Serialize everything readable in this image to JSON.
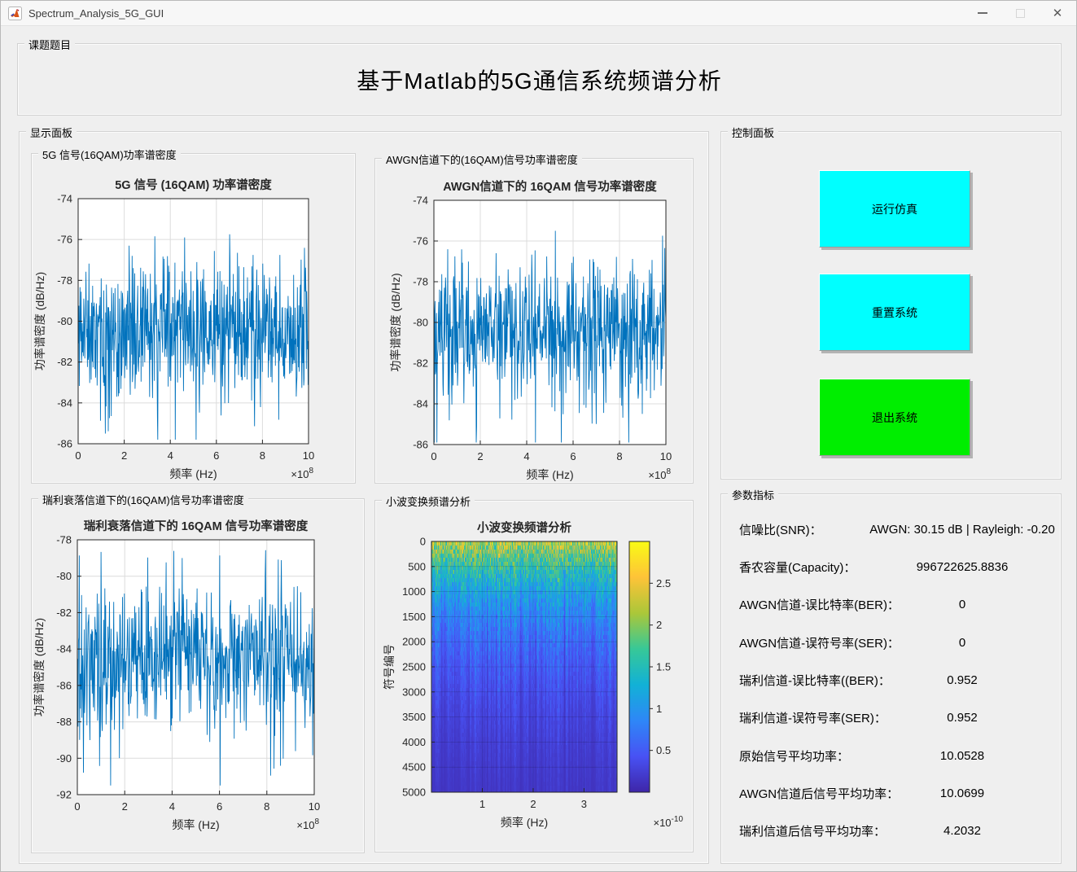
{
  "window": {
    "title": "Spectrum_Analysis_5G_GUI"
  },
  "header_panel": {
    "label": "课题题目",
    "title": "基于Matlab的5G通信系统频谱分析"
  },
  "display_panel": {
    "label": "显示面板"
  },
  "control_panel": {
    "label": "控制面板",
    "buttons": [
      {
        "label": "运行仿真",
        "color": "#00FFFF"
      },
      {
        "label": "重置系统",
        "color": "#00FFFF"
      },
      {
        "label": "退出系统",
        "color": "#00EE00"
      }
    ]
  },
  "param_panel": {
    "label": "参数指标",
    "rows": [
      {
        "label": "信噪比(SNR)：",
        "value": "AWGN: 30.15 dB | Rayleigh: -0.20"
      },
      {
        "label": "香农容量(Capacity)：",
        "value": "996722625.8836"
      },
      {
        "label": "AWGN信道-误比特率(BER)：",
        "value": "0"
      },
      {
        "label": "AWGN信道-误符号率(SER)：",
        "value": "0"
      },
      {
        "label": "瑞利信道-误比特率((BER)：",
        "value": "0.952"
      },
      {
        "label": "瑞利信道-误符号率(SER)：",
        "value": "0.952"
      },
      {
        "label": "原始信号平均功率：",
        "value": "10.0528"
      },
      {
        "label": "AWGN信道后信号平均功率：",
        "value": "10.0699"
      },
      {
        "label": "瑞利信道后信号平均功率：",
        "value": "4.2032"
      }
    ]
  },
  "chart_data": [
    {
      "id": "psd-5g",
      "type": "line",
      "panel_label": "5G 信号(16QAM)功率谱密度",
      "title": "5G 信号 (16QAM) 功率谱密度",
      "xlabel": "频率 (Hz)",
      "ylabel": "功率谱密度 (dB/Hz)",
      "x_scale_base": "×10",
      "x_scale_exp": "8",
      "xlim": [
        0,
        10
      ],
      "ylim": [
        -86,
        -74
      ],
      "xticks": [
        0,
        2,
        4,
        6,
        8,
        10
      ],
      "yticks": [
        -86,
        -84,
        -82,
        -80,
        -78,
        -76,
        -74
      ],
      "grid": true,
      "line_color": "#0072BD",
      "series_summary": {
        "points": 620,
        "mean_db": -80.4,
        "std_db": 1.6,
        "peak_db": -75.6,
        "floor_db": -85.8,
        "seed": 11
      }
    },
    {
      "id": "psd-awgn",
      "type": "line",
      "panel_label": "AWGN信道下的(16QAM)信号功率谱密度",
      "title": "AWGN信道下的 16QAM 信号功率谱密度",
      "xlabel": "频率 (Hz)",
      "ylabel": "功率谱密度 (dB/Hz)",
      "x_scale_base": "×10",
      "x_scale_exp": "8",
      "xlim": [
        0,
        10
      ],
      "ylim": [
        -86,
        -74
      ],
      "xticks": [
        0,
        2,
        4,
        6,
        8,
        10
      ],
      "yticks": [
        -86,
        -84,
        -82,
        -80,
        -78,
        -76,
        -74
      ],
      "grid": true,
      "line_color": "#0072BD",
      "series_summary": {
        "points": 620,
        "mean_db": -80.4,
        "std_db": 1.6,
        "peak_db": -75.5,
        "floor_db": -85.9,
        "seed": 29
      }
    },
    {
      "id": "psd-rayleigh",
      "type": "line",
      "panel_label": "瑞利衰落信道下的(16QAM)信号功率谱密度",
      "title": "瑞利衰落信道下的 16QAM 信号功率谱密度",
      "xlabel": "频率 (Hz)",
      "ylabel": "功率谱密度 (dB/Hz)",
      "x_scale_base": "×10",
      "x_scale_exp": "8",
      "xlim": [
        0,
        10
      ],
      "ylim": [
        -92,
        -78
      ],
      "xticks": [
        0,
        2,
        4,
        6,
        8,
        10
      ],
      "yticks": [
        -92,
        -90,
        -88,
        -86,
        -84,
        -82,
        -80,
        -78
      ],
      "grid": true,
      "line_color": "#0072BD",
      "series_summary": {
        "points": 620,
        "mean_db": -84.4,
        "std_db": 1.8,
        "peak_db": -78.5,
        "floor_db": -91.5,
        "seed": 47
      }
    },
    {
      "id": "wavelet",
      "type": "heatmap",
      "panel_label": "小波变换频谱分析",
      "title": "小波变换频谱分析",
      "xlabel": "频率 (Hz)",
      "ylabel": "符号编号",
      "x_scale_base": "×10",
      "x_scale_exp": "-10",
      "xlim": [
        0,
        3.65
      ],
      "xticks": [
        1,
        2,
        3
      ],
      "ylim": [
        0,
        5000
      ],
      "yticks": [
        0,
        500,
        1000,
        1500,
        2000,
        2500,
        3000,
        3500,
        4000,
        4500,
        5000
      ],
      "colormap": "parula",
      "colorbar": {
        "lim": [
          0,
          3
        ],
        "ticks": [
          0.5,
          1,
          1.5,
          2,
          2.5
        ]
      },
      "intensity_profile": "bright streaks near symbol 0 decaying to dark blue at symbol 5000",
      "seed": 71
    }
  ]
}
